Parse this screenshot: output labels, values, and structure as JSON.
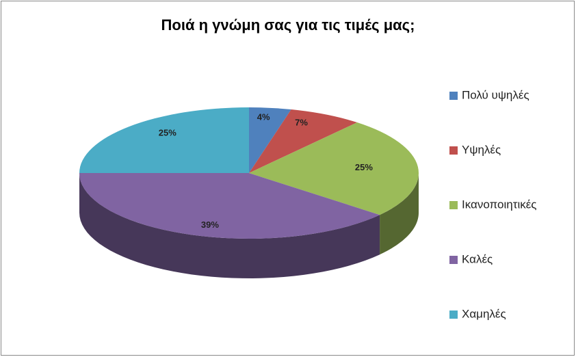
{
  "chart_data": {
    "type": "pie3d",
    "title": "Ποιά η γνώμη σας για τις τιμές μας;",
    "categories": [
      "Πολύ υψηλές",
      "Υψηλές",
      "Ικανοποιητικές",
      "Καλές",
      "Χαμηλές"
    ],
    "values": [
      4,
      7,
      25,
      39,
      25
    ],
    "value_labels": [
      "4%",
      "7%",
      "25%",
      "39%",
      "25%"
    ],
    "colors": [
      "#4f81bd",
      "#c0504d",
      "#9bbb59",
      "#8064a2",
      "#4bacc6"
    ],
    "legend": "right"
  }
}
